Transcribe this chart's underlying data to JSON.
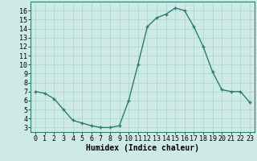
{
  "x": [
    0,
    1,
    2,
    3,
    4,
    5,
    6,
    7,
    8,
    9,
    10,
    11,
    12,
    13,
    14,
    15,
    16,
    17,
    18,
    19,
    20,
    21,
    22,
    23
  ],
  "y": [
    7.0,
    6.8,
    6.2,
    5.0,
    3.8,
    3.5,
    3.2,
    3.0,
    3.0,
    3.2,
    6.0,
    10.0,
    14.2,
    15.2,
    15.6,
    16.3,
    16.0,
    14.2,
    12.0,
    9.2,
    7.2,
    7.0,
    7.0,
    5.8
  ],
  "line_color": "#2e7d6e",
  "marker": "+",
  "marker_size": 3,
  "bg_color": "#ceeae7",
  "grid_color": "#aed4d0",
  "xlabel": "Humidex (Indice chaleur)",
  "xlabel_fontsize": 7,
  "ylim": [
    2.5,
    17.0
  ],
  "xlim": [
    -0.5,
    23.5
  ],
  "yticks": [
    3,
    4,
    5,
    6,
    7,
    8,
    9,
    10,
    11,
    12,
    13,
    14,
    15,
    16
  ],
  "xticks": [
    0,
    1,
    2,
    3,
    4,
    5,
    6,
    7,
    8,
    9,
    10,
    11,
    12,
    13,
    14,
    15,
    16,
    17,
    18,
    19,
    20,
    21,
    22,
    23
  ],
  "tick_fontsize": 6,
  "line_width": 1.0,
  "marker_edge_width": 1.0
}
